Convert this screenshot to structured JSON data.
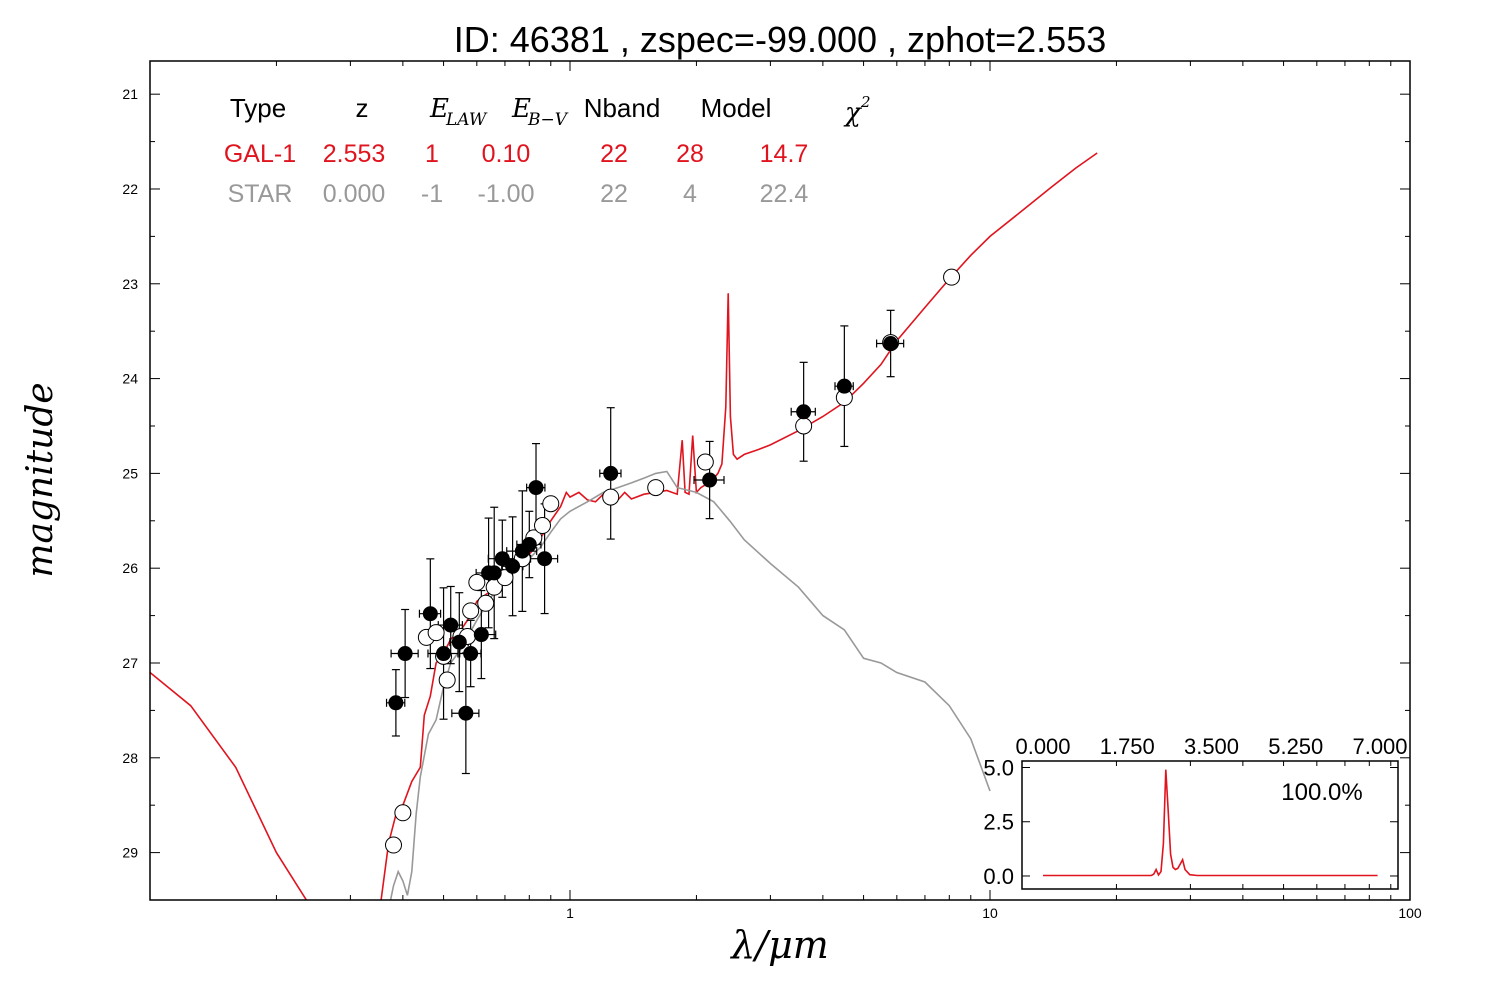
{
  "chart_data": {
    "type": "scatter",
    "title": "ID:  46381 , zspec=-99.000 , zphot=2.553",
    "xlabel": "λ/μm",
    "ylabel": "magnitude",
    "xscale": "log",
    "xlim": [
      0.1,
      100
    ],
    "ylim": [
      29.5,
      20.65
    ],
    "x_ticks": [
      "1",
      "10",
      "100"
    ],
    "y_ticks": [
      "21",
      "22",
      "23",
      "24",
      "25",
      "26",
      "27",
      "28",
      "29"
    ],
    "colors": {
      "galaxy": "#e0141e",
      "star": "#999999",
      "axes": "#000000"
    },
    "table": {
      "headers": [
        "Type",
        "z",
        "E_LAW",
        "E_B-V",
        "Nband",
        "Model",
        "χ2"
      ],
      "rows": [
        {
          "name": "GAL-1",
          "cells": [
            "GAL-1",
            "2.553",
            "1",
            "0.10",
            "22",
            "28",
            "14.7"
          ],
          "color": "#e0141e"
        },
        {
          "name": "STAR",
          "cells": [
            "STAR",
            "0.000",
            "-1",
            "-1.00",
            "22",
            "4",
            "22.4"
          ],
          "color": "#999999"
        }
      ]
    },
    "series": [
      {
        "kind": "line",
        "color": "#e0141e",
        "points": [
          [
            0.1,
            27.1
          ],
          [
            0.125,
            27.45
          ],
          [
            0.16,
            28.1
          ],
          [
            0.2,
            29.0
          ],
          [
            0.26,
            29.8
          ],
          [
            0.3,
            30.1
          ],
          [
            0.34,
            30.1
          ],
          [
            0.355,
            29.5
          ],
          [
            0.37,
            28.9
          ],
          [
            0.385,
            28.6
          ],
          [
            0.4,
            28.5
          ],
          [
            0.42,
            28.25
          ],
          [
            0.44,
            28.1
          ],
          [
            0.45,
            27.55
          ],
          [
            0.465,
            27.35
          ],
          [
            0.48,
            27.0
          ],
          [
            0.5,
            26.9
          ],
          [
            0.52,
            26.75
          ],
          [
            0.55,
            26.65
          ],
          [
            0.58,
            26.5
          ],
          [
            0.6,
            26.35
          ],
          [
            0.63,
            26.28
          ],
          [
            0.66,
            26.22
          ],
          [
            0.7,
            26.1
          ],
          [
            0.74,
            25.97
          ],
          [
            0.78,
            25.9
          ],
          [
            0.82,
            25.8
          ],
          [
            0.86,
            25.65
          ],
          [
            0.9,
            25.5
          ],
          [
            0.95,
            25.35
          ],
          [
            0.98,
            25.2
          ],
          [
            1.0,
            25.25
          ],
          [
            1.05,
            25.2
          ],
          [
            1.1,
            25.28
          ],
          [
            1.15,
            25.3
          ],
          [
            1.2,
            25.22
          ],
          [
            1.25,
            25.25
          ],
          [
            1.3,
            25.28
          ],
          [
            1.35,
            25.2
          ],
          [
            1.4,
            25.27
          ],
          [
            1.5,
            25.22
          ],
          [
            1.6,
            25.2
          ],
          [
            1.7,
            25.18
          ],
          [
            1.8,
            25.22
          ],
          [
            1.85,
            24.65
          ],
          [
            1.88,
            25.2
          ],
          [
            1.92,
            25.22
          ],
          [
            1.96,
            24.6
          ],
          [
            2.0,
            25.2
          ],
          [
            2.05,
            25.15
          ],
          [
            2.1,
            25.12
          ],
          [
            2.15,
            25.08
          ],
          [
            2.2,
            25.05
          ],
          [
            2.25,
            25.0
          ],
          [
            2.3,
            24.9
          ],
          [
            2.35,
            24.3
          ],
          [
            2.38,
            23.1
          ],
          [
            2.41,
            24.4
          ],
          [
            2.45,
            24.8
          ],
          [
            2.5,
            24.85
          ],
          [
            2.6,
            24.8
          ],
          [
            2.8,
            24.75
          ],
          [
            3.0,
            24.7
          ],
          [
            3.5,
            24.55
          ],
          [
            4.0,
            24.4
          ],
          [
            4.5,
            24.25
          ],
          [
            5.0,
            24.05
          ],
          [
            5.5,
            23.85
          ],
          [
            6.0,
            23.6
          ],
          [
            7.0,
            23.25
          ],
          [
            8.0,
            22.95
          ],
          [
            9.0,
            22.7
          ],
          [
            10.0,
            22.5
          ],
          [
            12.0,
            22.22
          ],
          [
            14.0,
            21.98
          ],
          [
            16.0,
            21.78
          ],
          [
            18.0,
            21.62
          ]
        ]
      },
      {
        "kind": "line",
        "color": "#999999",
        "points": [
          [
            0.37,
            29.6
          ],
          [
            0.38,
            29.35
          ],
          [
            0.39,
            29.2
          ],
          [
            0.4,
            29.3
          ],
          [
            0.41,
            29.45
          ],
          [
            0.42,
            29.2
          ],
          [
            0.43,
            28.6
          ],
          [
            0.44,
            28.2
          ],
          [
            0.46,
            27.75
          ],
          [
            0.48,
            27.6
          ],
          [
            0.5,
            27.25
          ],
          [
            0.52,
            27.0
          ],
          [
            0.55,
            26.85
          ],
          [
            0.6,
            26.55
          ],
          [
            0.65,
            26.3
          ],
          [
            0.7,
            26.12
          ],
          [
            0.75,
            25.98
          ],
          [
            0.8,
            25.9
          ],
          [
            0.85,
            25.78
          ],
          [
            0.9,
            25.62
          ],
          [
            0.95,
            25.48
          ],
          [
            1.0,
            25.4
          ],
          [
            1.1,
            25.3
          ],
          [
            1.2,
            25.2
          ],
          [
            1.3,
            25.15
          ],
          [
            1.4,
            25.1
          ],
          [
            1.5,
            25.05
          ],
          [
            1.6,
            25.0
          ],
          [
            1.7,
            24.98
          ],
          [
            1.8,
            25.15
          ],
          [
            2.0,
            25.2
          ],
          [
            2.2,
            25.3
          ],
          [
            2.4,
            25.5
          ],
          [
            2.6,
            25.7
          ],
          [
            3.0,
            25.95
          ],
          [
            3.5,
            26.2
          ],
          [
            4.0,
            26.5
          ],
          [
            4.5,
            26.65
          ],
          [
            5.0,
            26.95
          ],
          [
            5.5,
            27.0
          ],
          [
            6.0,
            27.1
          ],
          [
            7.0,
            27.2
          ],
          [
            8.0,
            27.45
          ],
          [
            9.0,
            27.8
          ],
          [
            10.0,
            28.35
          ]
        ]
      },
      {
        "kind": "observed",
        "color": "#000000",
        "points": [
          [
            0.385,
            27.42
          ],
          [
            0.405,
            26.9
          ],
          [
            0.465,
            26.48
          ],
          [
            0.5,
            26.9
          ],
          [
            0.52,
            26.6
          ],
          [
            0.545,
            26.78
          ],
          [
            0.565,
            27.53
          ],
          [
            0.58,
            26.9
          ],
          [
            0.615,
            26.7
          ],
          [
            0.64,
            26.05
          ],
          [
            0.66,
            26.05
          ],
          [
            0.69,
            25.9
          ],
          [
            0.73,
            25.98
          ],
          [
            0.77,
            25.82
          ],
          [
            0.8,
            25.75
          ],
          [
            0.83,
            25.15
          ],
          [
            0.87,
            25.9
          ],
          [
            1.25,
            25.0
          ],
          [
            2.15,
            25.07
          ],
          [
            3.6,
            24.35
          ],
          [
            4.5,
            24.08
          ],
          [
            5.8,
            23.63
          ]
        ]
      },
      {
        "kind": "model",
        "color": "#ffffff",
        "points": [
          [
            0.38,
            28.92
          ],
          [
            0.4,
            28.58
          ],
          [
            0.455,
            26.73
          ],
          [
            0.48,
            26.68
          ],
          [
            0.5,
            26.93
          ],
          [
            0.51,
            27.18
          ],
          [
            0.55,
            26.72
          ],
          [
            0.57,
            26.72
          ],
          [
            0.58,
            26.45
          ],
          [
            0.6,
            26.15
          ],
          [
            0.63,
            26.37
          ],
          [
            0.66,
            26.2
          ],
          [
            0.7,
            26.1
          ],
          [
            0.77,
            25.9
          ],
          [
            0.82,
            25.68
          ],
          [
            0.86,
            25.55
          ],
          [
            0.9,
            25.32
          ],
          [
            1.25,
            25.25
          ],
          [
            1.6,
            25.15
          ],
          [
            2.1,
            24.88
          ],
          [
            3.6,
            24.5
          ],
          [
            4.5,
            24.2
          ],
          [
            5.8,
            23.62
          ],
          [
            8.1,
            22.93
          ]
        ]
      }
    ],
    "inset": {
      "type": "line",
      "x_ticks": [
        "0.000",
        "1.750",
        "3.500",
        "5.250",
        "7.000"
      ],
      "y_ticks": [
        "5.0",
        "2.5",
        "0.0"
      ],
      "xlim": [
        -0.75,
        7.0
      ],
      "ylim": [
        -0.6,
        5.3
      ],
      "label": "100.0%",
      "color": "#e0141e",
      "points": [
        [
          0.0,
          0.02
        ],
        [
          2.25,
          0.02
        ],
        [
          2.3,
          0.08
        ],
        [
          2.35,
          0.3
        ],
        [
          2.4,
          0.05
        ],
        [
          2.45,
          0.2
        ],
        [
          2.5,
          1.5
        ],
        [
          2.55,
          4.9
        ],
        [
          2.6,
          3.0
        ],
        [
          2.65,
          1.0
        ],
        [
          2.7,
          0.4
        ],
        [
          2.75,
          0.3
        ],
        [
          2.8,
          0.35
        ],
        [
          2.85,
          0.55
        ],
        [
          2.9,
          0.75
        ],
        [
          2.95,
          0.3
        ],
        [
          3.05,
          0.06
        ],
        [
          3.2,
          0.02
        ],
        [
          6.95,
          0.02
        ]
      ]
    }
  }
}
